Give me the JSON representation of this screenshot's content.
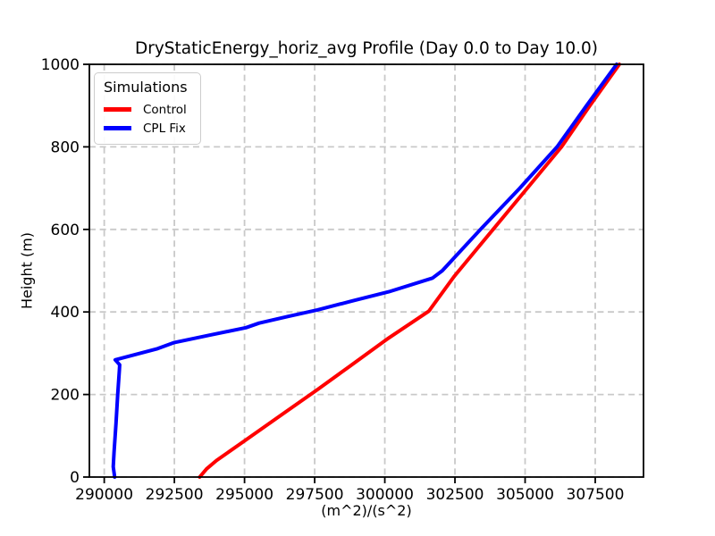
{
  "chart_data": {
    "type": "line",
    "title": "DryStaticEnergy_horiz_avg Profile (Day 0.0 to Day 10.0)",
    "xlabel": "(m^2)/(s^2)",
    "ylabel": "Height (m)",
    "xlim": [
      289470,
      309220
    ],
    "ylim": [
      0,
      1000
    ],
    "x_ticks": [
      290000,
      292500,
      295000,
      297500,
      300000,
      302500,
      305000,
      307500
    ],
    "y_ticks": [
      0,
      200,
      400,
      600,
      800,
      1000
    ],
    "grid": true,
    "grid_style": "dashed",
    "grid_color": "#c9c9c9",
    "legend": {
      "title": "Simulations",
      "position": "upper left"
    },
    "series": [
      {
        "name": "Control",
        "color": "#ff0000",
        "linewidth": 4,
        "points": [
          [
            293400,
            0
          ],
          [
            293650,
            20
          ],
          [
            294000,
            40
          ],
          [
            295050,
            90
          ],
          [
            296300,
            150
          ],
          [
            297600,
            212
          ],
          [
            298700,
            266
          ],
          [
            300100,
            335
          ],
          [
            301570,
            402
          ],
          [
            302460,
            485
          ],
          [
            303250,
            550
          ],
          [
            303860,
            600
          ],
          [
            305080,
            700
          ],
          [
            306300,
            800
          ],
          [
            307310,
            900
          ],
          [
            308360,
            1000
          ]
        ]
      },
      {
        "name": "CPL Fix",
        "color": "#0000ff",
        "linewidth": 4,
        "points": [
          [
            290370,
            0
          ],
          [
            290320,
            25
          ],
          [
            290350,
            60
          ],
          [
            290420,
            130
          ],
          [
            290480,
            200
          ],
          [
            290540,
            260
          ],
          [
            290550,
            272
          ],
          [
            290390,
            284
          ],
          [
            291900,
            311
          ],
          [
            292500,
            326
          ],
          [
            293770,
            344
          ],
          [
            295050,
            362
          ],
          [
            295520,
            373
          ],
          [
            296540,
            389
          ],
          [
            297600,
            405
          ],
          [
            298860,
            427
          ],
          [
            300140,
            449
          ],
          [
            301700,
            482
          ],
          [
            302050,
            500
          ],
          [
            303410,
            600
          ],
          [
            304810,
            700
          ],
          [
            306140,
            800
          ],
          [
            307190,
            900
          ],
          [
            308260,
            1000
          ]
        ]
      }
    ]
  }
}
